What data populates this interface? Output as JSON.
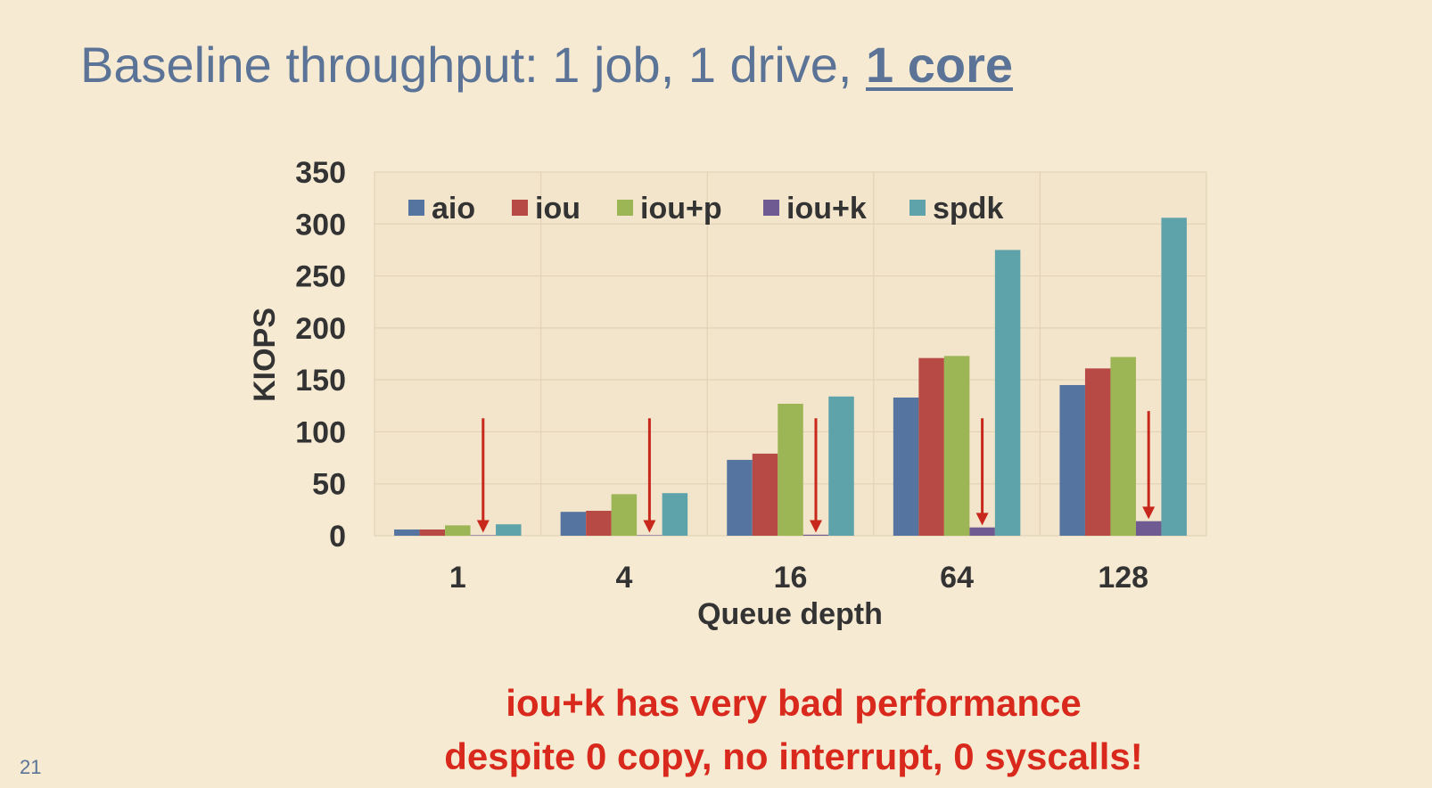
{
  "slide": {
    "title_prefix": "Baseline throughput: 1 job, 1 drive, ",
    "title_emphasis": "1 core",
    "note_line1": "iou+k has very bad performance",
    "note_line2": "despite 0 copy, no interrupt, 0 syscalls!",
    "page_number": "21"
  },
  "colors": {
    "title": "#5a7396",
    "note": "#d9281c",
    "arrow": "#c8271c",
    "background": "#f6ead3"
  },
  "chart_data": {
    "type": "bar",
    "categories": [
      "1",
      "4",
      "16",
      "64",
      "128"
    ],
    "xlabel": "Queue depth",
    "ylabel": "KIOPS",
    "ylim": [
      0,
      350
    ],
    "yticks": [
      0,
      50,
      100,
      150,
      200,
      250,
      300,
      350
    ],
    "grid": true,
    "legend_position": "top-left",
    "series": [
      {
        "name": "aio",
        "color": "#5575a0",
        "values": [
          6,
          23,
          73,
          133,
          145
        ]
      },
      {
        "name": "iou",
        "color": "#b84a45",
        "values": [
          6,
          24,
          79,
          171,
          161
        ]
      },
      {
        "name": "iou+p",
        "color": "#9cb555",
        "values": [
          10,
          40,
          127,
          173,
          172
        ]
      },
      {
        "name": "iou+k",
        "color": "#6f5b92",
        "values": [
          0.5,
          0.5,
          1,
          8,
          14
        ]
      },
      {
        "name": "spdk",
        "color": "#5fa3aa",
        "values": [
          11,
          41,
          134,
          275,
          306
        ]
      }
    ],
    "annotations": [
      {
        "type": "arrow",
        "series": "iou+k",
        "category": "1",
        "from_value": 113,
        "to_value": 3
      },
      {
        "type": "arrow",
        "series": "iou+k",
        "category": "4",
        "from_value": 113,
        "to_value": 3
      },
      {
        "type": "arrow",
        "series": "iou+k",
        "category": "16",
        "from_value": 113,
        "to_value": 3
      },
      {
        "type": "arrow",
        "series": "iou+k",
        "category": "64",
        "from_value": 113,
        "to_value": 10
      },
      {
        "type": "arrow",
        "series": "iou+k",
        "category": "128",
        "from_value": 120,
        "to_value": 16
      }
    ]
  }
}
